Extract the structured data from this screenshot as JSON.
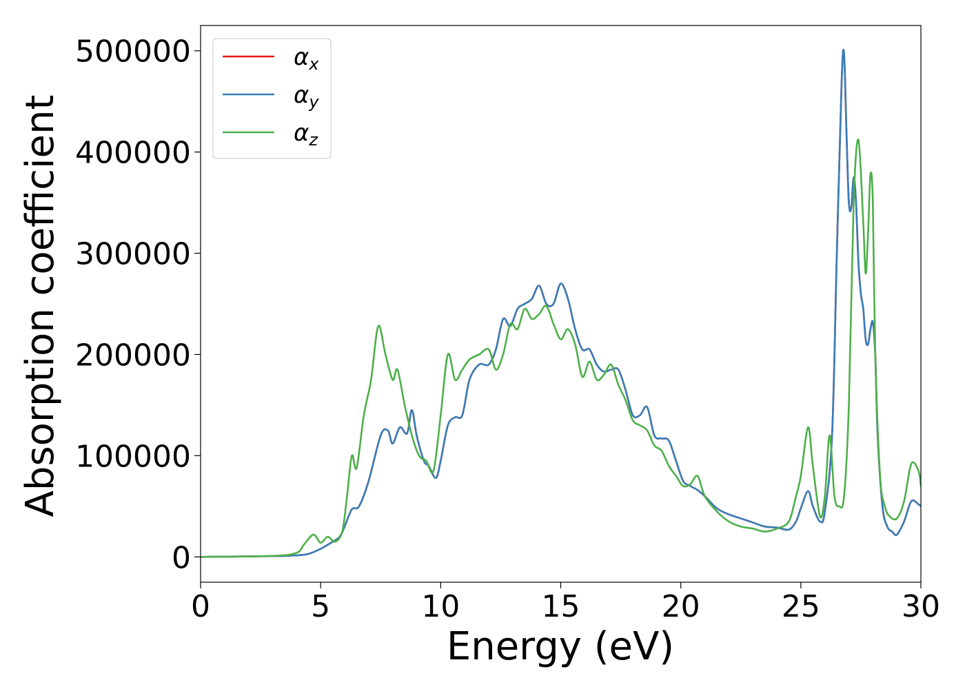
{
  "chart_data": {
    "type": "line",
    "xlabel": "Energy (eV)",
    "ylabel": "Absorption coefficient",
    "xlim": [
      0,
      30
    ],
    "ylim": [
      -25000,
      525000
    ],
    "xticks": [
      0,
      5,
      10,
      15,
      20,
      25,
      30
    ],
    "yticks": [
      0,
      100000,
      200000,
      300000,
      400000,
      500000
    ],
    "grid": false,
    "legend_position": "top-left",
    "series": [
      {
        "name": "α_x",
        "legend_main": "α",
        "legend_sub": "x",
        "color": "#e41a1c",
        "x": [
          0,
          3,
          4,
          4.5,
          5,
          5.5,
          5.8,
          6,
          6.3,
          6.6,
          7,
          7.5,
          7.8,
          8,
          8.3,
          8.6,
          8.8,
          9,
          9.3,
          9.5,
          9.8,
          10,
          10.3,
          10.6,
          10.9,
          11.2,
          11.6,
          12,
          12.3,
          12.6,
          12.9,
          13.2,
          13.5,
          13.8,
          14.1,
          14.4,
          14.7,
          15,
          15.3,
          15.6,
          15.9,
          16.2,
          16.5,
          16.8,
          17.1,
          17.4,
          17.7,
          18,
          18.3,
          18.6,
          18.9,
          19.2,
          19.5,
          19.8,
          20.1,
          20.4,
          20.7,
          21,
          21.5,
          22,
          22.5,
          23,
          23.5,
          24,
          24.5,
          24.8,
          25,
          25.3,
          25.5,
          25.8,
          26,
          26.3,
          26.5,
          26.7,
          26.8,
          26.9,
          27,
          27.1,
          27.2,
          27.3,
          27.4,
          27.5,
          27.6,
          27.7,
          27.8,
          27.9,
          28,
          28.1,
          28.2,
          28.4,
          28.6,
          28.8,
          29,
          29.3,
          29.6,
          29.9,
          30
        ],
        "y": [
          0,
          800,
          1500,
          3000,
          8000,
          15000,
          20000,
          30000,
          47000,
          50000,
          75000,
          120000,
          125000,
          112000,
          128000,
          122000,
          145000,
          120000,
          95000,
          90000,
          78000,
          95000,
          130000,
          138000,
          140000,
          175000,
          190000,
          190000,
          205000,
          235000,
          228000,
          245000,
          250000,
          255000,
          268000,
          250000,
          250000,
          270000,
          255000,
          225000,
          205000,
          205000,
          190000,
          183000,
          185000,
          185000,
          165000,
          140000,
          140000,
          148000,
          120000,
          117000,
          115000,
          95000,
          75000,
          70000,
          66000,
          60000,
          48000,
          42000,
          38000,
          34000,
          30000,
          29000,
          27000,
          35000,
          48000,
          65000,
          50000,
          35000,
          45000,
          120000,
          300000,
          470000,
          497000,
          420000,
          350000,
          345000,
          375000,
          350000,
          290000,
          260000,
          245000,
          215000,
          210000,
          225000,
          232000,
          200000,
          120000,
          50000,
          30000,
          25000,
          22000,
          35000,
          55000,
          52000,
          50000
        ]
      },
      {
        "name": "α_y",
        "legend_main": "α",
        "legend_sub": "y",
        "color": "#377eb8",
        "x": [
          0,
          3,
          4,
          4.5,
          5,
          5.5,
          5.8,
          6,
          6.3,
          6.6,
          7,
          7.5,
          7.8,
          8,
          8.3,
          8.6,
          8.8,
          9,
          9.3,
          9.5,
          9.8,
          10,
          10.3,
          10.6,
          10.9,
          11.2,
          11.6,
          12,
          12.3,
          12.6,
          12.9,
          13.2,
          13.5,
          13.8,
          14.1,
          14.4,
          14.7,
          15,
          15.3,
          15.6,
          15.9,
          16.2,
          16.5,
          16.8,
          17.1,
          17.4,
          17.7,
          18,
          18.3,
          18.6,
          18.9,
          19.2,
          19.5,
          19.8,
          20.1,
          20.4,
          20.7,
          21,
          21.5,
          22,
          22.5,
          23,
          23.5,
          24,
          24.5,
          24.8,
          25,
          25.3,
          25.5,
          25.8,
          26,
          26.3,
          26.5,
          26.7,
          26.8,
          26.9,
          27,
          27.1,
          27.2,
          27.3,
          27.4,
          27.5,
          27.6,
          27.7,
          27.8,
          27.9,
          28,
          28.1,
          28.2,
          28.4,
          28.6,
          28.8,
          29,
          29.3,
          29.6,
          29.9,
          30
        ],
        "y": [
          0,
          800,
          1500,
          3000,
          8000,
          15000,
          20000,
          30000,
          47000,
          50000,
          75000,
          120000,
          125000,
          112000,
          128000,
          122000,
          145000,
          120000,
          95000,
          90000,
          78000,
          95000,
          130000,
          138000,
          140000,
          175000,
          190000,
          190000,
          205000,
          235000,
          228000,
          245000,
          250000,
          255000,
          268000,
          250000,
          250000,
          270000,
          255000,
          225000,
          205000,
          205000,
          190000,
          183000,
          185000,
          185000,
          165000,
          140000,
          140000,
          148000,
          120000,
          117000,
          115000,
          95000,
          75000,
          70000,
          66000,
          60000,
          48000,
          42000,
          38000,
          34000,
          30000,
          29000,
          27000,
          35000,
          48000,
          65000,
          50000,
          35000,
          45000,
          120000,
          300000,
          470000,
          497000,
          420000,
          350000,
          345000,
          375000,
          350000,
          290000,
          260000,
          245000,
          215000,
          210000,
          225000,
          232000,
          200000,
          120000,
          50000,
          30000,
          25000,
          22000,
          35000,
          55000,
          52000,
          50000
        ]
      },
      {
        "name": "α_z",
        "legend_main": "α",
        "legend_sub": "z",
        "color": "#4daf4a",
        "x": [
          0,
          3,
          4,
          4.3,
          4.7,
          5,
          5.3,
          5.6,
          5.9,
          6.1,
          6.3,
          6.5,
          6.8,
          7.1,
          7.4,
          7.7,
          8,
          8.2,
          8.5,
          8.8,
          9.1,
          9.4,
          9.7,
          10,
          10.3,
          10.6,
          10.9,
          11.2,
          11.6,
          12,
          12.3,
          12.6,
          12.9,
          13.2,
          13.5,
          13.8,
          14.1,
          14.4,
          14.7,
          15,
          15.3,
          15.6,
          15.9,
          16.2,
          16.5,
          16.8,
          17.1,
          17.4,
          17.7,
          18,
          18.3,
          18.6,
          18.9,
          19.2,
          19.5,
          19.8,
          20.1,
          20.4,
          20.7,
          21,
          21.5,
          22,
          22.5,
          23,
          23.5,
          24,
          24.5,
          24.8,
          25,
          25.3,
          25.5,
          25.8,
          26,
          26.2,
          26.4,
          26.6,
          26.8,
          27,
          27.2,
          27.4,
          27.6,
          27.7,
          27.8,
          27.9,
          28,
          28.1,
          28.3,
          28.5,
          28.7,
          29,
          29.3,
          29.6,
          29.9,
          30
        ],
        "y": [
          0,
          1000,
          4000,
          12000,
          22000,
          14000,
          20000,
          15000,
          25000,
          60000,
          100000,
          88000,
          140000,
          175000,
          228000,
          200000,
          175000,
          185000,
          150000,
          120000,
          100000,
          95000,
          85000,
          140000,
          200000,
          175000,
          185000,
          195000,
          200000,
          205000,
          185000,
          200000,
          230000,
          225000,
          245000,
          235000,
          240000,
          248000,
          230000,
          215000,
          225000,
          210000,
          178000,
          193000,
          175000,
          180000,
          190000,
          170000,
          155000,
          135000,
          130000,
          125000,
          110000,
          105000,
          90000,
          80000,
          70000,
          72000,
          80000,
          60000,
          45000,
          35000,
          30000,
          28000,
          25000,
          28000,
          35000,
          60000,
          80000,
          128000,
          90000,
          40000,
          60000,
          120000,
          60000,
          50000,
          60000,
          150000,
          350000,
          412000,
          330000,
          280000,
          320000,
          378000,
          350000,
          200000,
          80000,
          50000,
          40000,
          38000,
          55000,
          92000,
          85000,
          70000
        ]
      }
    ]
  }
}
